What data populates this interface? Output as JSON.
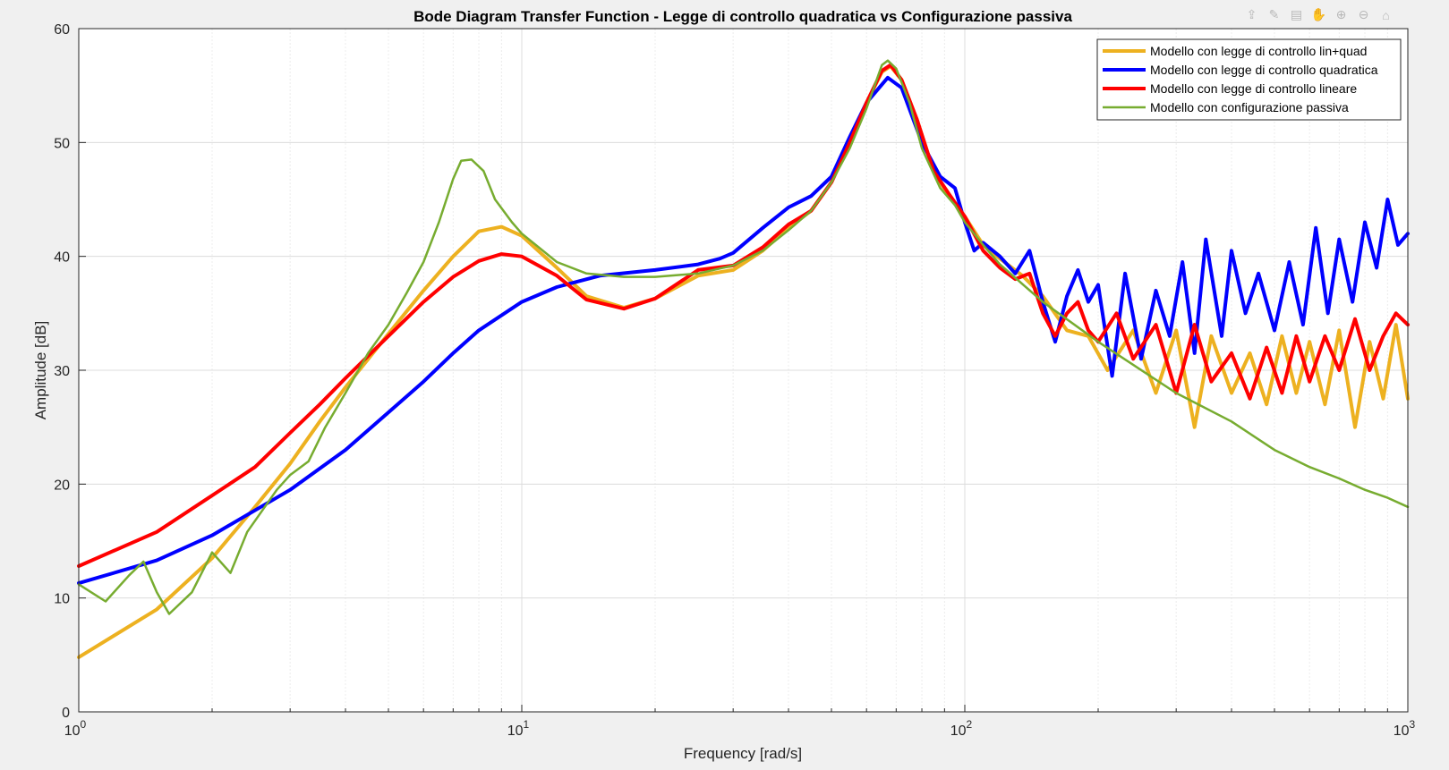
{
  "figure": {
    "toolbar": [
      {
        "name": "export-icon",
        "glyph": "⇪"
      },
      {
        "name": "brush-icon",
        "glyph": "✎"
      },
      {
        "name": "datatip-icon",
        "glyph": "▤"
      },
      {
        "name": "pan-icon",
        "glyph": "✋"
      },
      {
        "name": "zoom-in-icon",
        "glyph": "⊕"
      },
      {
        "name": "zoom-out-icon",
        "glyph": "⊖"
      },
      {
        "name": "home-icon",
        "glyph": "⌂"
      }
    ]
  },
  "chart_data": {
    "type": "line",
    "title": "Bode Diagram Transfer Function - Legge di controllo quadratica vs Configurazione passiva",
    "xlabel": "Frequency [rad/s]",
    "ylabel": "Amplitude [dB]",
    "xscale": "log",
    "xlim": [
      1,
      1000
    ],
    "ylim": [
      0,
      60
    ],
    "xticks": [
      {
        "value": 1,
        "base": "10",
        "exp": "0"
      },
      {
        "value": 10,
        "base": "10",
        "exp": "1"
      },
      {
        "value": 100,
        "base": "10",
        "exp": "2"
      },
      {
        "value": 1000,
        "base": "10",
        "exp": "3"
      }
    ],
    "yticks": [
      0,
      10,
      20,
      30,
      40,
      50,
      60
    ],
    "grid": true,
    "legend": "top-right",
    "series": [
      {
        "name": "Modello con legge di controllo lin+quad",
        "color": "#edb120",
        "width": 4,
        "points": [
          [
            1,
            4.8
          ],
          [
            1.5,
            9
          ],
          [
            2,
            13.5
          ],
          [
            2.5,
            18
          ],
          [
            3,
            21.8
          ],
          [
            3.5,
            25.5
          ],
          [
            4,
            28.5
          ],
          [
            5,
            33.2
          ],
          [
            6,
            37
          ],
          [
            7,
            40
          ],
          [
            8,
            42.2
          ],
          [
            9,
            42.6
          ],
          [
            10,
            41.8
          ],
          [
            12,
            39
          ],
          [
            14,
            36.5
          ],
          [
            17,
            35.5
          ],
          [
            20,
            36.3
          ],
          [
            25,
            38.3
          ],
          [
            30,
            38.8
          ],
          [
            35,
            40.5
          ],
          [
            40,
            42.5
          ],
          [
            45,
            44
          ],
          [
            50,
            46.5
          ],
          [
            55,
            50
          ],
          [
            60,
            53.5
          ],
          [
            65,
            56.2
          ],
          [
            68,
            56.7
          ],
          [
            72,
            55.5
          ],
          [
            78,
            52
          ],
          [
            85,
            47.5
          ],
          [
            92,
            45.3
          ],
          [
            100,
            43.5
          ],
          [
            110,
            41
          ],
          [
            120,
            39.8
          ],
          [
            135,
            38.3
          ],
          [
            150,
            36.5
          ],
          [
            170,
            33.5
          ],
          [
            190,
            33
          ],
          [
            210,
            30
          ],
          [
            240,
            33.5
          ],
          [
            270,
            28
          ],
          [
            300,
            33.5
          ],
          [
            330,
            25
          ],
          [
            360,
            33
          ],
          [
            400,
            28
          ],
          [
            440,
            31.5
          ],
          [
            480,
            27
          ],
          [
            520,
            33
          ],
          [
            560,
            28
          ],
          [
            600,
            32.5
          ],
          [
            650,
            27
          ],
          [
            700,
            33.5
          ],
          [
            760,
            25
          ],
          [
            820,
            32.5
          ],
          [
            880,
            27.5
          ],
          [
            940,
            34
          ],
          [
            1000,
            27.5
          ]
        ]
      },
      {
        "name": "Modello con legge di controllo quadratica",
        "color": "#0000ff",
        "width": 4,
        "points": [
          [
            1,
            11.3
          ],
          [
            1.5,
            13.3
          ],
          [
            2,
            15.5
          ],
          [
            3,
            19.5
          ],
          [
            4,
            23
          ],
          [
            5,
            26.3
          ],
          [
            6,
            29
          ],
          [
            7,
            31.5
          ],
          [
            8,
            33.5
          ],
          [
            10,
            36
          ],
          [
            12,
            37.3
          ],
          [
            15,
            38.3
          ],
          [
            20,
            38.8
          ],
          [
            25,
            39.3
          ],
          [
            28,
            39.8
          ],
          [
            30,
            40.3
          ],
          [
            35,
            42.5
          ],
          [
            40,
            44.3
          ],
          [
            45,
            45.3
          ],
          [
            50,
            47
          ],
          [
            55,
            50.5
          ],
          [
            60,
            53.5
          ],
          [
            67,
            55.7
          ],
          [
            72,
            54.8
          ],
          [
            80,
            50
          ],
          [
            88,
            47
          ],
          [
            95,
            46
          ],
          [
            100,
            43
          ],
          [
            105,
            40.5
          ],
          [
            110,
            41.2
          ],
          [
            120,
            40
          ],
          [
            130,
            38.5
          ],
          [
            140,
            40.5
          ],
          [
            150,
            36
          ],
          [
            160,
            32.5
          ],
          [
            170,
            36.5
          ],
          [
            180,
            38.8
          ],
          [
            190,
            36
          ],
          [
            200,
            37.5
          ],
          [
            215,
            29.5
          ],
          [
            230,
            38.5
          ],
          [
            250,
            31
          ],
          [
            270,
            37
          ],
          [
            290,
            33
          ],
          [
            310,
            39.5
          ],
          [
            330,
            31.5
          ],
          [
            350,
            41.5
          ],
          [
            380,
            33
          ],
          [
            400,
            40.5
          ],
          [
            430,
            35
          ],
          [
            460,
            38.5
          ],
          [
            500,
            33.5
          ],
          [
            540,
            39.5
          ],
          [
            580,
            34
          ],
          [
            620,
            42.5
          ],
          [
            660,
            35
          ],
          [
            700,
            41.5
          ],
          [
            750,
            36
          ],
          [
            800,
            43
          ],
          [
            850,
            39
          ],
          [
            900,
            45
          ],
          [
            950,
            41
          ],
          [
            1000,
            42
          ]
        ]
      },
      {
        "name": "Modello con legge di controllo lineare",
        "color": "#ff0000",
        "width": 4,
        "points": [
          [
            1,
            12.8
          ],
          [
            1.5,
            15.8
          ],
          [
            2,
            19
          ],
          [
            2.5,
            21.5
          ],
          [
            3,
            24.5
          ],
          [
            3.5,
            27
          ],
          [
            4,
            29.3
          ],
          [
            5,
            33
          ],
          [
            6,
            36
          ],
          [
            7,
            38.2
          ],
          [
            8,
            39.6
          ],
          [
            9,
            40.2
          ],
          [
            10,
            40
          ],
          [
            12,
            38.3
          ],
          [
            14,
            36.2
          ],
          [
            17,
            35.4
          ],
          [
            20,
            36.3
          ],
          [
            25,
            38.8
          ],
          [
            30,
            39.2
          ],
          [
            35,
            40.8
          ],
          [
            40,
            42.8
          ],
          [
            45,
            44
          ],
          [
            50,
            46.5
          ],
          [
            55,
            50
          ],
          [
            60,
            53.5
          ],
          [
            65,
            56.3
          ],
          [
            68,
            56.8
          ],
          [
            72,
            55.5
          ],
          [
            78,
            52
          ],
          [
            85,
            47.5
          ],
          [
            92,
            45.5
          ],
          [
            100,
            43.5
          ],
          [
            110,
            40.5
          ],
          [
            120,
            39
          ],
          [
            130,
            38
          ],
          [
            140,
            38.5
          ],
          [
            150,
            35
          ],
          [
            160,
            33
          ],
          [
            170,
            35
          ],
          [
            180,
            36
          ],
          [
            190,
            33.5
          ],
          [
            200,
            32.5
          ],
          [
            220,
            35
          ],
          [
            240,
            31
          ],
          [
            270,
            34
          ],
          [
            300,
            28
          ],
          [
            330,
            34
          ],
          [
            360,
            29
          ],
          [
            400,
            31.5
          ],
          [
            440,
            27.5
          ],
          [
            480,
            32
          ],
          [
            520,
            28
          ],
          [
            560,
            33
          ],
          [
            600,
            29
          ],
          [
            650,
            33
          ],
          [
            700,
            30
          ],
          [
            760,
            34.5
          ],
          [
            820,
            30
          ],
          [
            880,
            33
          ],
          [
            940,
            35
          ],
          [
            1000,
            34
          ]
        ]
      },
      {
        "name": "Modello con configurazione passiva",
        "color": "#77ac30",
        "width": 2.5,
        "points": [
          [
            1,
            11.2
          ],
          [
            1.15,
            9.7
          ],
          [
            1.3,
            12
          ],
          [
            1.4,
            13.2
          ],
          [
            1.5,
            10.5
          ],
          [
            1.6,
            8.6
          ],
          [
            1.8,
            10.5
          ],
          [
            2,
            14
          ],
          [
            2.2,
            12.2
          ],
          [
            2.4,
            15.8
          ],
          [
            2.8,
            19.5
          ],
          [
            3,
            20.8
          ],
          [
            3.3,
            22
          ],
          [
            3.6,
            25
          ],
          [
            4,
            28
          ],
          [
            4.5,
            31.5
          ],
          [
            5,
            34
          ],
          [
            5.5,
            36.8
          ],
          [
            6,
            39.5
          ],
          [
            6.5,
            43
          ],
          [
            7,
            46.8
          ],
          [
            7.3,
            48.4
          ],
          [
            7.7,
            48.5
          ],
          [
            8.2,
            47.5
          ],
          [
            8.7,
            45
          ],
          [
            9.5,
            43
          ],
          [
            10,
            42
          ],
          [
            12,
            39.5
          ],
          [
            14,
            38.5
          ],
          [
            17,
            38.2
          ],
          [
            20,
            38.2
          ],
          [
            25,
            38.5
          ],
          [
            30,
            39.2
          ],
          [
            35,
            40.5
          ],
          [
            40,
            42.3
          ],
          [
            45,
            44
          ],
          [
            50,
            46.5
          ],
          [
            55,
            49.5
          ],
          [
            60,
            53
          ],
          [
            65,
            56.8
          ],
          [
            67,
            57.2
          ],
          [
            70,
            56.5
          ],
          [
            75,
            53.5
          ],
          [
            80,
            49.5
          ],
          [
            88,
            46
          ],
          [
            95,
            44.5
          ],
          [
            100,
            43
          ],
          [
            110,
            41
          ],
          [
            120,
            39.3
          ],
          [
            150,
            36
          ],
          [
            200,
            32.5
          ],
          [
            300,
            28
          ],
          [
            400,
            25.5
          ],
          [
            500,
            23
          ],
          [
            600,
            21.5
          ],
          [
            700,
            20.5
          ],
          [
            800,
            19.5
          ],
          [
            900,
            18.8
          ],
          [
            1000,
            18
          ]
        ]
      }
    ]
  }
}
